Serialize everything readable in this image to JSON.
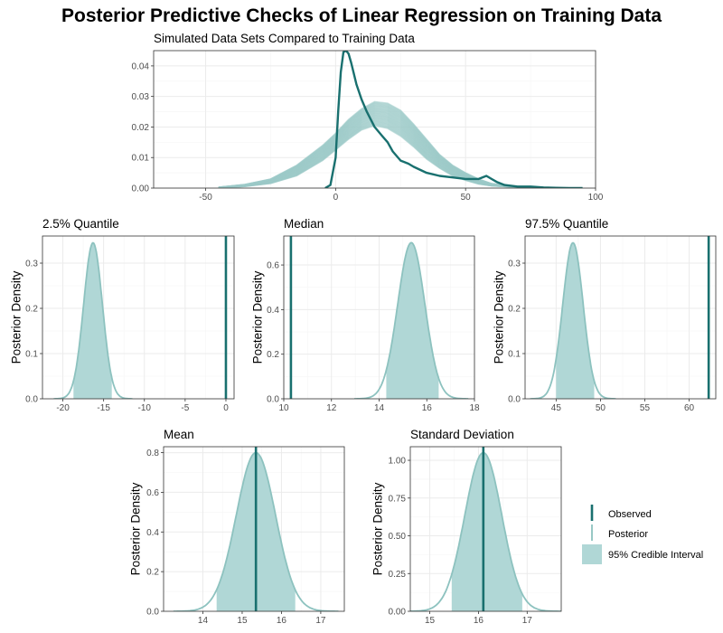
{
  "title": "Posterior Predictive Checks of Linear Regression on Training Data",
  "colors": {
    "observed": "#19706f",
    "posterior_line": "#8dc2bf",
    "interval_fill": "#b0d7d6",
    "sim_line": "#9ccac8"
  },
  "legend": {
    "items": [
      {
        "label": "Observed",
        "key": "observed"
      },
      {
        "label": "Posterior",
        "key": "posterior"
      },
      {
        "label": "95% Credible Interval",
        "key": "interval"
      }
    ],
    "placement": "right"
  },
  "chart_data": [
    {
      "id": "density_overlay",
      "type": "line",
      "title": "Simulated Data Sets Compared to Training Data",
      "xlim": [
        -70,
        100
      ],
      "ylim": [
        0,
        0.045
      ],
      "xticks": [
        -50,
        0,
        50,
        100
      ],
      "yticks": [
        0.0,
        0.01,
        0.02,
        0.03,
        0.04
      ],
      "ytick_labels": [
        "0.00",
        "0.01",
        "0.02",
        "0.03",
        "0.04"
      ],
      "grid": true,
      "observed": {
        "x": [
          -4,
          -2,
          0,
          1,
          2,
          3,
          4,
          5,
          6,
          8,
          10,
          12,
          15,
          18,
          20,
          22,
          25,
          28,
          30,
          35,
          40,
          45,
          50,
          55,
          58,
          60,
          62,
          65,
          70,
          75,
          80,
          85,
          90,
          95
        ],
        "y": [
          0.0,
          0.001,
          0.01,
          0.025,
          0.038,
          0.0445,
          0.045,
          0.044,
          0.041,
          0.034,
          0.029,
          0.025,
          0.02,
          0.017,
          0.015,
          0.012,
          0.009,
          0.008,
          0.007,
          0.005,
          0.004,
          0.0035,
          0.003,
          0.003,
          0.004,
          0.003,
          0.002,
          0.001,
          0.0005,
          0.0005,
          0.0002,
          0.0001,
          0.0,
          0.0
        ]
      },
      "simulated_band": {
        "x": [
          -45,
          -35,
          -25,
          -15,
          -5,
          0,
          5,
          10,
          15,
          20,
          25,
          30,
          35,
          40,
          45,
          50,
          55,
          60,
          70,
          80
        ],
        "y_low": [
          0.0,
          0.0005,
          0.0015,
          0.004,
          0.009,
          0.0125,
          0.016,
          0.019,
          0.0205,
          0.0195,
          0.017,
          0.0135,
          0.0095,
          0.0065,
          0.004,
          0.0025,
          0.0013,
          0.0007,
          0.0002,
          0.0
        ],
        "y_high": [
          0.0003,
          0.0012,
          0.003,
          0.0075,
          0.014,
          0.018,
          0.0225,
          0.026,
          0.0283,
          0.0278,
          0.0255,
          0.021,
          0.016,
          0.011,
          0.0075,
          0.005,
          0.003,
          0.0015,
          0.0005,
          0.0001
        ]
      }
    },
    {
      "id": "q025",
      "type": "area",
      "title": "2.5% Quantile",
      "ylabel": "Posterior Density",
      "xlim": [
        -22.5,
        1.0
      ],
      "ylim": [
        0,
        0.36
      ],
      "xticks": [
        -20,
        -15,
        -10,
        -5,
        0
      ],
      "yticks": [
        0.0,
        0.1,
        0.2,
        0.3
      ],
      "ytick_labels": [
        "0.0",
        "0.1",
        "0.2",
        "0.3"
      ],
      "mean": -16.3,
      "sd": 1.15,
      "peak": 0.345,
      "interval": [
        -18.7,
        -14.0
      ],
      "observed": 0.0
    },
    {
      "id": "median",
      "type": "area",
      "title": "Median",
      "ylabel": "Posterior Density",
      "xlim": [
        10.0,
        18.0
      ],
      "ylim": [
        0,
        0.73
      ],
      "xticks": [
        10,
        12,
        14,
        16,
        18
      ],
      "yticks": [
        0.0,
        0.2,
        0.4,
        0.6
      ],
      "ytick_labels": [
        "0.0",
        "0.2",
        "0.4",
        "0.6"
      ],
      "mean": 15.35,
      "sd": 0.57,
      "peak": 0.7,
      "interval": [
        14.3,
        16.5
      ],
      "observed": 10.3
    },
    {
      "id": "q975",
      "type": "area",
      "title": "97.5% Quantile",
      "ylabel": "Posterior Density",
      "xlim": [
        41.5,
        63.0
      ],
      "ylim": [
        0,
        0.36
      ],
      "xticks": [
        45,
        50,
        55,
        60
      ],
      "yticks": [
        0.0,
        0.1,
        0.2,
        0.3
      ],
      "ytick_labels": [
        "0.0",
        "0.1",
        "0.2",
        "0.3"
      ],
      "mean": 46.9,
      "sd": 1.15,
      "peak": 0.345,
      "interval": [
        45.0,
        49.3
      ],
      "observed": 62.2
    },
    {
      "id": "mean",
      "type": "area",
      "title": "Mean",
      "ylabel": "Posterior Density",
      "xlim": [
        13.0,
        17.6
      ],
      "ylim": [
        0,
        0.83
      ],
      "xticks": [
        14,
        15,
        16,
        17
      ],
      "yticks": [
        0.0,
        0.2,
        0.4,
        0.6,
        0.8
      ],
      "ytick_labels": [
        "0.0",
        "0.2",
        "0.4",
        "0.6",
        "0.8"
      ],
      "mean": 15.35,
      "sd": 0.5,
      "peak": 0.8,
      "interval": [
        14.35,
        16.35
      ],
      "observed": 15.35
    },
    {
      "id": "sd",
      "type": "area",
      "title": "Standard Deviation",
      "ylabel": "Posterior Density",
      "xlim": [
        14.6,
        17.7
      ],
      "ylim": [
        0,
        1.09
      ],
      "xticks": [
        15,
        16,
        17
      ],
      "yticks": [
        0.0,
        0.25,
        0.5,
        0.75,
        1.0
      ],
      "ytick_labels": [
        "0.00",
        "0.25",
        "0.50",
        "0.75",
        "1.00"
      ],
      "mean": 16.1,
      "sd": 0.38,
      "peak": 1.05,
      "interval": [
        15.45,
        16.9
      ],
      "observed": 16.1
    }
  ]
}
